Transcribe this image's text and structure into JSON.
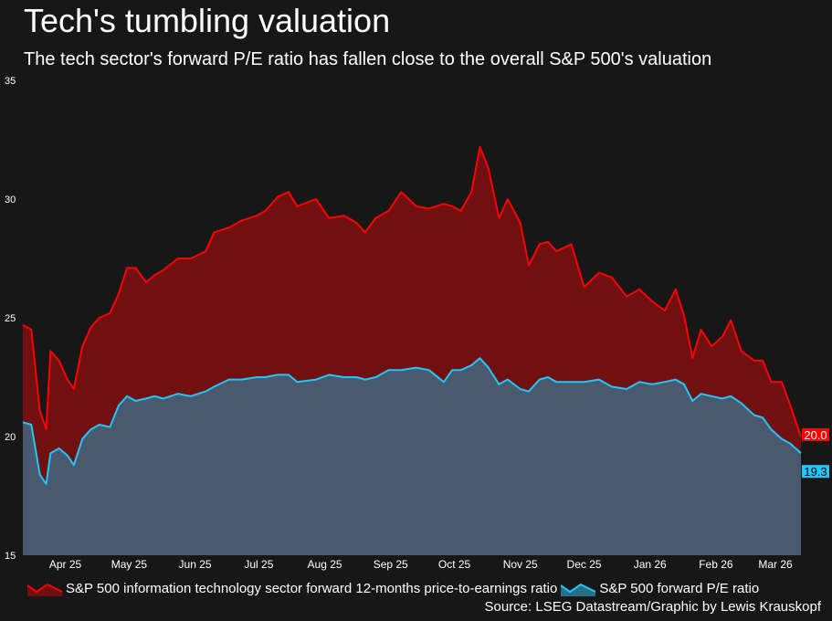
{
  "chart_data": {
    "type": "area",
    "title": "Tech's tumbling valuation",
    "subtitle": "The tech sector's forward P/E ratio has fallen close to the overall S&P 500's valuation",
    "ylim": [
      15,
      35
    ],
    "yticks": [
      "15",
      "20",
      "25",
      "30",
      "35"
    ],
    "xlim": [
      "2025-03-12",
      "2026-03-13"
    ],
    "xticks": [
      {
        "label": "Apr 25",
        "date": "2025-04-01"
      },
      {
        "label": "May 25",
        "date": "2025-05-01"
      },
      {
        "label": "Jun 25",
        "date": "2025-06-01"
      },
      {
        "label": "Jul 25",
        "date": "2025-07-01"
      },
      {
        "label": "Aug 25",
        "date": "2025-08-01"
      },
      {
        "label": "Sep 25",
        "date": "2025-09-01"
      },
      {
        "label": "Oct 25",
        "date": "2025-10-01"
      },
      {
        "label": "Nov 25",
        "date": "2025-11-01"
      },
      {
        "label": "Dec 25",
        "date": "2025-12-01"
      },
      {
        "label": "Jan 26",
        "date": "2026-01-01"
      },
      {
        "label": "Feb 26",
        "date": "2026-02-01"
      },
      {
        "label": "Mar 26",
        "date": "2026-03-01"
      }
    ],
    "grid": false,
    "legend_position": "bottom",
    "x": [
      "2025-03-12",
      "2025-03-16",
      "2025-03-20",
      "2025-03-23",
      "2025-03-25",
      "2025-03-29",
      "2025-04-02",
      "2025-04-05",
      "2025-04-09",
      "2025-04-13",
      "2025-04-17",
      "2025-04-22",
      "2025-04-26",
      "2025-04-30",
      "2025-05-04",
      "2025-05-09",
      "2025-05-13",
      "2025-05-17",
      "2025-05-24",
      "2025-05-30",
      "2025-06-06",
      "2025-06-10",
      "2025-06-17",
      "2025-06-23",
      "2025-06-30",
      "2025-07-04",
      "2025-07-10",
      "2025-07-15",
      "2025-07-19",
      "2025-07-28",
      "2025-08-03",
      "2025-08-10",
      "2025-08-16",
      "2025-08-20",
      "2025-08-25",
      "2025-08-31",
      "2025-09-06",
      "2025-09-13",
      "2025-09-19",
      "2025-09-26",
      "2025-09-30",
      "2025-10-04",
      "2025-10-09",
      "2025-10-13",
      "2025-10-17",
      "2025-10-22",
      "2025-10-26",
      "2025-11-01",
      "2025-11-05",
      "2025-11-10",
      "2025-11-14",
      "2025-11-18",
      "2025-11-25",
      "2025-12-01",
      "2025-12-08",
      "2025-12-14",
      "2025-12-21",
      "2025-12-27",
      "2026-01-02",
      "2026-01-08",
      "2026-01-13",
      "2026-01-17",
      "2026-01-21",
      "2026-01-25",
      "2026-01-30",
      "2026-02-04",
      "2026-02-08",
      "2026-02-13",
      "2026-02-19",
      "2026-02-23",
      "2026-02-27",
      "2026-03-04",
      "2026-03-08",
      "2026-03-13"
    ],
    "series": [
      {
        "name": "S&P 500 information technology sector forward 12-months price-to-earnings ratio",
        "line_color": "#ff0000",
        "fill_color": "#701010",
        "last_label": "20.0",
        "values": [
          24.7,
          24.5,
          21.1,
          20.3,
          23.6,
          23.2,
          22.4,
          22.0,
          23.8,
          24.6,
          25.0,
          25.2,
          26.0,
          27.1,
          27.1,
          26.5,
          26.8,
          27.0,
          27.5,
          27.5,
          27.8,
          28.6,
          28.8,
          29.1,
          29.3,
          29.5,
          30.1,
          30.3,
          29.7,
          30.0,
          29.2,
          29.3,
          29.0,
          28.6,
          29.2,
          29.5,
          30.3,
          29.7,
          29.6,
          29.8,
          29.7,
          29.5,
          30.3,
          32.2,
          31.3,
          29.2,
          30.0,
          29.0,
          27.2,
          28.1,
          28.2,
          27.8,
          28.1,
          26.3,
          26.9,
          26.7,
          25.9,
          26.2,
          25.7,
          25.3,
          26.2,
          25.1,
          23.3,
          24.5,
          23.8,
          24.2,
          24.9,
          23.6,
          23.2,
          23.2,
          22.3,
          22.3,
          21.3,
          20.0
        ]
      },
      {
        "name": "S&P 500 forward P/E ratio",
        "line_color": "#1ec8ff",
        "fill_color": "#4a5a6e",
        "last_label": "19.3",
        "values": [
          20.6,
          20.5,
          18.4,
          18.0,
          19.3,
          19.5,
          19.2,
          18.8,
          19.9,
          20.3,
          20.5,
          20.4,
          21.3,
          21.7,
          21.5,
          21.6,
          21.7,
          21.6,
          21.8,
          21.7,
          21.9,
          22.1,
          22.4,
          22.4,
          22.5,
          22.5,
          22.6,
          22.6,
          22.3,
          22.4,
          22.6,
          22.5,
          22.5,
          22.4,
          22.5,
          22.8,
          22.8,
          22.9,
          22.8,
          22.3,
          22.8,
          22.8,
          23.0,
          23.3,
          22.9,
          22.2,
          22.4,
          22.0,
          21.9,
          22.4,
          22.5,
          22.3,
          22.3,
          22.3,
          22.4,
          22.1,
          22.0,
          22.3,
          22.2,
          22.3,
          22.4,
          22.2,
          21.5,
          21.8,
          21.7,
          21.6,
          21.7,
          21.4,
          20.9,
          20.8,
          20.3,
          19.9,
          19.7,
          19.3
        ]
      }
    ],
    "source": "Source: LSEG Datastream/Graphic by Lewis Krauskopf"
  }
}
